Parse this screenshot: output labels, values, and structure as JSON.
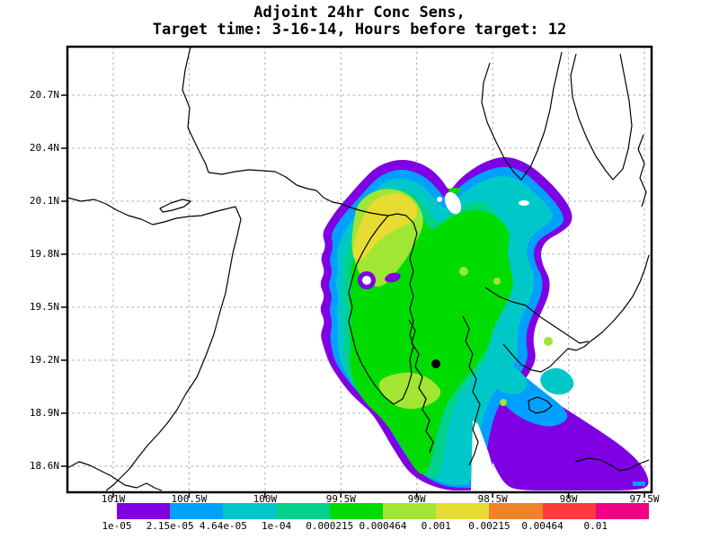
{
  "title": {
    "line1": "Adjoint 24hr Conc Sens,",
    "line2": "Target time: 3-16-14, Hours before target: 12"
  },
  "axes": {
    "x_ticks": [
      {
        "label": "101W",
        "lon": -101.0
      },
      {
        "label": "100.5W",
        "lon": -100.5
      },
      {
        "label": "100W",
        "lon": -100.0
      },
      {
        "label": "99.5W",
        "lon": -99.5
      },
      {
        "label": "99W",
        "lon": -99.0
      },
      {
        "label": "98.5W",
        "lon": -98.5
      },
      {
        "label": "98W",
        "lon": -98.0
      },
      {
        "label": "97.5W",
        "lon": -97.5
      }
    ],
    "y_ticks": [
      {
        "label": "20.7N",
        "lat": 20.7
      },
      {
        "label": "20.4N",
        "lat": 20.4
      },
      {
        "label": "20.1N",
        "lat": 20.1
      },
      {
        "label": "19.8N",
        "lat": 19.8
      },
      {
        "label": "19.5N",
        "lat": 19.5
      },
      {
        "label": "19.2N",
        "lat": 19.2
      },
      {
        "label": "18.9N",
        "lat": 18.9
      },
      {
        "label": "18.6N",
        "lat": 18.6
      }
    ]
  },
  "colorbar": {
    "labels": [
      "1e-05",
      "2.15e-05",
      "4.64e-05",
      "1e-04",
      "0.000215",
      "0.000464",
      "0.001",
      "0.00215",
      "0.00464",
      "0.01"
    ],
    "colors": [
      "#7E00E3",
      "#00A0FF",
      "#00C8C8",
      "#00D28C",
      "#00DC00",
      "#A0E632",
      "#E6DC32",
      "#F08228",
      "#FA3C3C",
      "#F00082"
    ]
  },
  "map": {
    "grid_color": "#b6b6b6",
    "boundary_color": "#000000",
    "marker_color": "#000000"
  },
  "chart_data": {
    "type": "heatmap",
    "subtype": "filled-contour-sensitivity-map",
    "title": "Adjoint 24hr Conc Sens,",
    "subtitle": "Target time: 3-16-14, Hours before target: 12",
    "x_tick_labels": [
      "101W",
      "100.5W",
      "100W",
      "99.5W",
      "99W",
      "98.5W",
      "98W",
      "97.5W"
    ],
    "y_tick_labels": [
      "20.7N",
      "20.4N",
      "20.1N",
      "19.8N",
      "19.5N",
      "19.2N",
      "18.9N",
      "18.6N"
    ],
    "xlim_lon": [
      -101.3,
      -97.45
    ],
    "ylim_lat": [
      18.45,
      20.97
    ],
    "contour_levels": [
      1e-05,
      2.15e-05,
      4.64e-05,
      0.0001,
      0.000215,
      0.000464,
      0.001,
      0.00215,
      0.00464,
      0.01
    ],
    "level_labels": [
      "1e-05",
      "2.15e-05",
      "4.64e-05",
      "1e-04",
      "0.000215",
      "0.000464",
      "0.001",
      "0.00215",
      "0.00464",
      "0.01"
    ],
    "palette": [
      "#7E00E3",
      "#00A0FF",
      "#00C8C8",
      "#00D28C",
      "#00DC00",
      "#A0E632",
      "#E6DC32",
      "#F08228",
      "#FA3C3C",
      "#F00082"
    ],
    "max_level_shown_on_map": "0.001",
    "target_marker": {
      "approx_lon": -98.87,
      "approx_lat": 19.18
    },
    "grid": true,
    "legend_position": "bottom",
    "notes": "Adjoint concentration sensitivity plume over central Mexico; highest sensitivity (yellow, ~0.001) northwest of target dot, low-sensitivity purple tail (1e-05) extends to the southeast corner."
  }
}
